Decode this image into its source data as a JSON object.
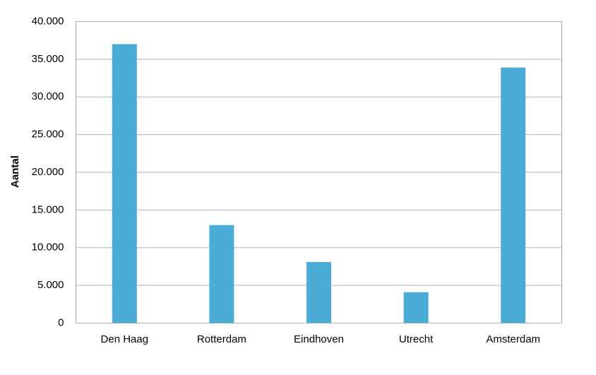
{
  "chart_data": {
    "type": "bar",
    "y_label": "Aantal",
    "categories": [
      "Den Haag",
      "Rotterdam",
      "Eindhoven",
      "Utrecht",
      "Amsterdam"
    ],
    "values": [
      37000,
      13000,
      8100,
      4100,
      33900
    ],
    "color": "#4bacd6",
    "ylim": [
      0,
      40000
    ],
    "yticks": [
      0,
      {
        "value": 5000,
        "label": "5.000"
      },
      {
        "value": 10000,
        "label": "10.000"
      },
      {
        "value": 15000,
        "label": "15.000"
      },
      {
        "value": 20000,
        "label": "20.000"
      },
      {
        "value": 25000,
        "label": "25.000"
      },
      {
        "value": 30000,
        "label": "30.000"
      },
      {
        "value": 35000,
        "label": "35.000"
      },
      {
        "value": 40000,
        "label": "40.000"
      }
    ],
    "grid": true
  }
}
